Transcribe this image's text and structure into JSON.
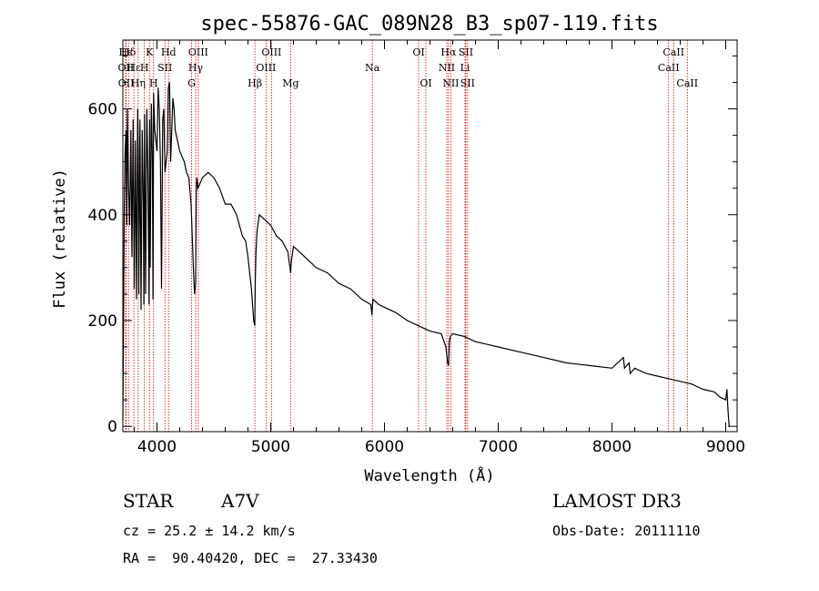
{
  "chart_data": {
    "type": "line",
    "title": "spec-55876-GAC_089N28_B3_sp07-119.fits",
    "xlabel": "Wavelength (Å)",
    "ylabel": "Flux (relative)",
    "xlim": [
      3700,
      9100
    ],
    "ylim": [
      -10,
      730
    ],
    "xticks": [
      4000,
      5000,
      6000,
      7000,
      8000,
      9000
    ],
    "yticks": [
      0,
      200,
      400,
      600
    ],
    "series": [
      {
        "name": "flux",
        "x": [
          3700,
          3705,
          3712,
          3720,
          3728,
          3735,
          3740,
          3750,
          3760,
          3770,
          3780,
          3790,
          3800,
          3810,
          3820,
          3830,
          3835,
          3840,
          3850,
          3860,
          3870,
          3880,
          3885,
          3890,
          3900,
          3910,
          3920,
          3930,
          3935,
          3940,
          3950,
          3960,
          3965,
          3970,
          3980,
          3990,
          4000,
          4010,
          4020,
          4030,
          4040,
          4050,
          4060,
          4070,
          4090,
          4100,
          4110,
          4120,
          4140,
          4150,
          4160,
          4170,
          4180,
          4190,
          4200,
          4220,
          4240,
          4260,
          4280,
          4300,
          4320,
          4330,
          4340,
          4345,
          4350,
          4360,
          4380,
          4400,
          4450,
          4500,
          4550,
          4600,
          4650,
          4700,
          4750,
          4780,
          4800,
          4830,
          4850,
          4860,
          4865,
          4870,
          4880,
          4900,
          4950,
          5000,
          5050,
          5100,
          5150,
          5175,
          5180,
          5200,
          5300,
          5400,
          5500,
          5600,
          5700,
          5800,
          5880,
          5890,
          5895,
          5900,
          5950,
          6000,
          6100,
          6200,
          6300,
          6400,
          6500,
          6540,
          6555,
          6563,
          6570,
          6580,
          6600,
          6700,
          6800,
          6900,
          7000,
          7200,
          7400,
          7600,
          7800,
          8000,
          8100,
          8110,
          8150,
          8160,
          8200,
          8300,
          8400,
          8500,
          8600,
          8700,
          8800,
          8900,
          8950,
          9000,
          9010,
          9020,
          9030
        ],
        "values": [
          10,
          160,
          400,
          520,
          560,
          380,
          600,
          450,
          380,
          560,
          320,
          580,
          260,
          540,
          240,
          600,
          520,
          250,
          580,
          220,
          560,
          420,
          230,
          590,
          250,
          600,
          480,
          230,
          580,
          300,
          610,
          500,
          240,
          630,
          560,
          540,
          520,
          640,
          600,
          500,
          260,
          580,
          600,
          480,
          520,
          640,
          650,
          500,
          620,
          600,
          560,
          550,
          540,
          530,
          520,
          510,
          500,
          480,
          470,
          420,
          300,
          250,
          270,
          440,
          470,
          450,
          460,
          470,
          480,
          470,
          450,
          420,
          420,
          400,
          360,
          350,
          320,
          260,
          200,
          190,
          280,
          330,
          370,
          400,
          390,
          380,
          360,
          350,
          330,
          290,
          310,
          340,
          320,
          300,
          290,
          270,
          260,
          240,
          230,
          210,
          230,
          240,
          230,
          225,
          215,
          200,
          190,
          180,
          175,
          150,
          120,
          115,
          160,
          170,
          175,
          170,
          160,
          155,
          150,
          140,
          130,
          120,
          115,
          110,
          130,
          110,
          120,
          100,
          110,
          100,
          95,
          90,
          85,
          80,
          70,
          65,
          55,
          50,
          70,
          30,
          0
        ]
      }
    ],
    "lines": [
      {
        "label": "Hε",
        "wave": 3725,
        "row": 0
      },
      {
        "label": "Hδ",
        "wave": 3750,
        "row": 0
      },
      {
        "label": "K",
        "wave": 3934,
        "row": 0
      },
      {
        "label": "Hd",
        "wave": 4102,
        "row": 0
      },
      {
        "label": "OIII",
        "wave": 4363,
        "row": 0
      },
      {
        "label": "OIII",
        "wave": 5007,
        "row": 0
      },
      {
        "label": "OI",
        "wave": 6300,
        "row": 0
      },
      {
        "label": "Hα",
        "wave": 6563,
        "row": 0
      },
      {
        "label": "SII",
        "wave": 6716,
        "row": 0
      },
      {
        "label": "CaII",
        "wave": 8542,
        "row": 0
      },
      {
        "label": "OII",
        "wave": 3727,
        "row": 1
      },
      {
        "label": "Hε",
        "wave": 3797,
        "row": 1
      },
      {
        "label": "H",
        "wave": 3889,
        "row": 1
      },
      {
        "label": "SII",
        "wave": 4070,
        "row": 1
      },
      {
        "label": "Hγ",
        "wave": 4340,
        "row": 1
      },
      {
        "label": "OIII",
        "wave": 4959,
        "row": 1
      },
      {
        "label": "Na",
        "wave": 5893,
        "row": 1
      },
      {
        "label": "NII",
        "wave": 6548,
        "row": 1
      },
      {
        "label": "Li",
        "wave": 6708,
        "row": 1
      },
      {
        "label": "CaII",
        "wave": 8498,
        "row": 1
      },
      {
        "label": "OII",
        "wave": 3729,
        "row": 2
      },
      {
        "label": "Hη",
        "wave": 3835,
        "row": 2
      },
      {
        "label": "H",
        "wave": 3970,
        "row": 2
      },
      {
        "label": "G",
        "wave": 4304,
        "row": 2
      },
      {
        "label": "Hβ",
        "wave": 4861,
        "row": 2
      },
      {
        "label": "Mg",
        "wave": 5175,
        "row": 2
      },
      {
        "label": "OI",
        "wave": 6364,
        "row": 2
      },
      {
        "label": "NII",
        "wave": 6583,
        "row": 2
      },
      {
        "label": "SII",
        "wave": 6731,
        "row": 2
      },
      {
        "label": "CaII",
        "wave": 8662,
        "row": 2
      }
    ],
    "line_color": "#cc0000"
  },
  "info": {
    "class": "STAR",
    "subclass": "A7V",
    "survey": "LAMOST DR3",
    "cz": "cz = 25.2 ± 14.2 km/s",
    "obsdate": "Obs-Date: 20111110",
    "radec": "RA =  90.40420, DEC =  27.33430"
  }
}
